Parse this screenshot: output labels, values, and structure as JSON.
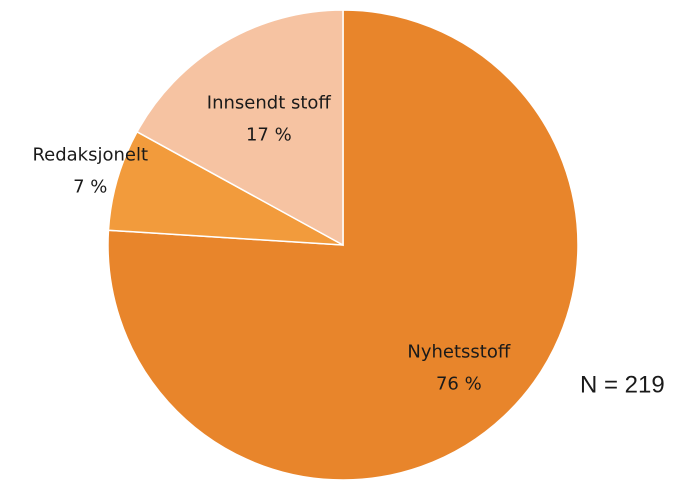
{
  "chart_data": {
    "type": "pie",
    "categories": [
      "Nyhetsstoff",
      "Redaksjonelt",
      "Innsendt stoff"
    ],
    "values": [
      76,
      7,
      17
    ],
    "value_labels": [
      "76 %",
      "7 %",
      "17 %"
    ],
    "colors": [
      "#e8852b",
      "#f29b3c",
      "#f6c3a2"
    ],
    "annotation": "N = 219"
  }
}
